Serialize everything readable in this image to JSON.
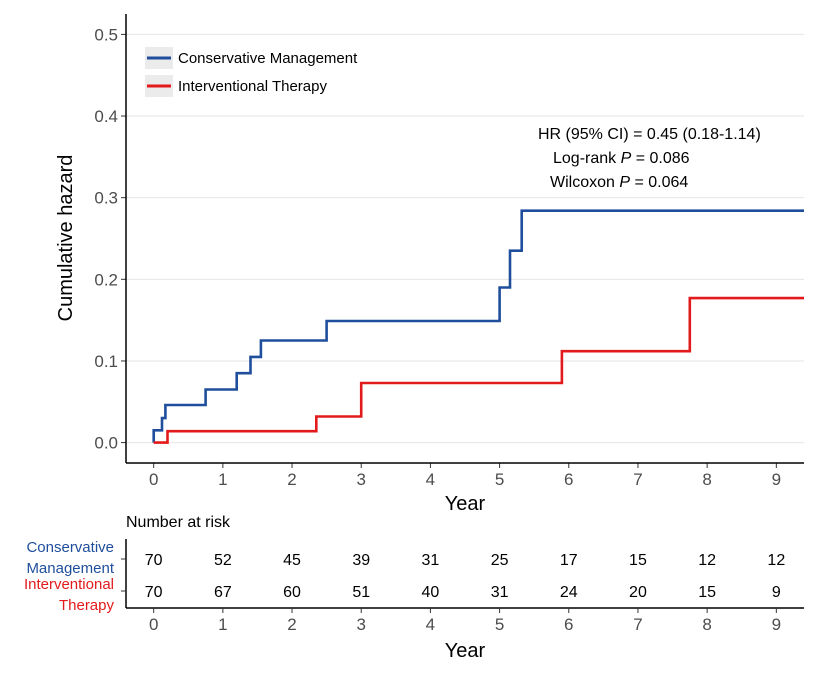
{
  "chart_data": {
    "type": "line",
    "step": true,
    "xlabel": "Year",
    "ylabel": "Cumulative hazard",
    "xlim": [
      -0.4,
      9.4
    ],
    "ylim": [
      -0.025,
      0.525
    ],
    "x_ticks": [
      "0",
      "1",
      "2",
      "3",
      "4",
      "5",
      "6",
      "7",
      "8",
      "9"
    ],
    "y_ticks": [
      "0.0",
      "0.1",
      "0.2",
      "0.3",
      "0.4",
      "0.5"
    ],
    "grid": true,
    "legend_position": "top-left",
    "series": [
      {
        "name": "Conservative Management",
        "color": "#1f4e9c",
        "points": [
          [
            0,
            0
          ],
          [
            0,
            0.015
          ],
          [
            0.12,
            0.015
          ],
          [
            0.12,
            0.03
          ],
          [
            0.17,
            0.03
          ],
          [
            0.17,
            0.046
          ],
          [
            0.75,
            0.046
          ],
          [
            0.75,
            0.065
          ],
          [
            1.2,
            0.065
          ],
          [
            1.2,
            0.085
          ],
          [
            1.4,
            0.085
          ],
          [
            1.4,
            0.105
          ],
          [
            1.55,
            0.105
          ],
          [
            1.55,
            0.125
          ],
          [
            2.5,
            0.125
          ],
          [
            2.5,
            0.149
          ],
          [
            5.0,
            0.149
          ],
          [
            5.0,
            0.19
          ],
          [
            5.15,
            0.19
          ],
          [
            5.15,
            0.235
          ],
          [
            5.32,
            0.235
          ],
          [
            5.32,
            0.284
          ],
          [
            9.4,
            0.284
          ]
        ]
      },
      {
        "name": "Interventional Therapy",
        "color": "#e31a1c",
        "points": [
          [
            0,
            0
          ],
          [
            0.2,
            0
          ],
          [
            0.2,
            0.014
          ],
          [
            2.35,
            0.014
          ],
          [
            2.35,
            0.032
          ],
          [
            3.0,
            0.032
          ],
          [
            3.0,
            0.073
          ],
          [
            5.9,
            0.073
          ],
          [
            5.9,
            0.112
          ],
          [
            7.75,
            0.112
          ],
          [
            7.75,
            0.177
          ],
          [
            9.4,
            0.177
          ]
        ]
      }
    ],
    "annotations": [
      {
        "text": "HR (95% CI) = 0.45 (0.18-1.14)"
      },
      {
        "pre": "Log-rank ",
        "italic": "P",
        "post": " = 0.086"
      },
      {
        "pre": "Wilcoxon ",
        "italic": "P",
        "post": " = 0.064"
      }
    ]
  },
  "risk_table": {
    "title": "Number at risk",
    "xlabel": "Year",
    "x_ticks": [
      "0",
      "1",
      "2",
      "3",
      "4",
      "5",
      "6",
      "7",
      "8",
      "9"
    ],
    "groups": [
      {
        "label_lines": [
          "Conservative",
          "Management"
        ],
        "color": "#1f4e9c",
        "values": [
          "70",
          "52",
          "45",
          "39",
          "31",
          "25",
          "17",
          "15",
          "12",
          "12"
        ]
      },
      {
        "label_lines": [
          "Interventional",
          "Therapy"
        ],
        "color": "#e31a1c",
        "values": [
          "70",
          "67",
          "60",
          "51",
          "40",
          "31",
          "24",
          "20",
          "15",
          "9"
        ]
      }
    ]
  }
}
